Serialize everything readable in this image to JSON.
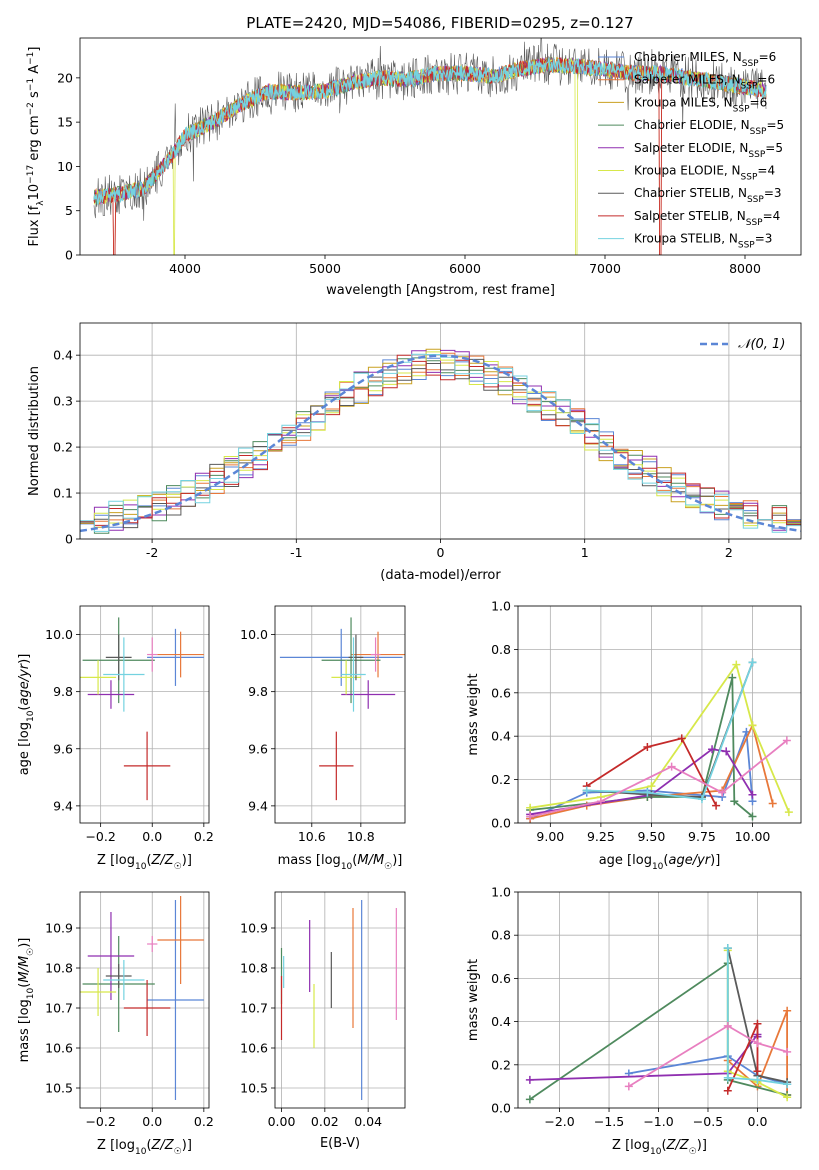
{
  "figure_title": "PLATE=2420, MJD=54086, FIBERID=0295, z=0.127",
  "colors": {
    "chab_miles": "#5b86d6",
    "salp_miles": "#e8783a",
    "krou_miles": "#c9a020",
    "chab_elodie": "#4f8a5e",
    "salp_elodie": "#8f2fb0",
    "krou_elodie": "#d7e84a",
    "chab_stelib": "#5a5a5a",
    "salp_stelib": "#c42a2a",
    "krou_stelib": "#74d2e0",
    "pink": "#e87fc0",
    "normal": "#5b86d6",
    "grid": "#b0b0b0"
  },
  "chart_data": [
    {
      "id": "spectrum",
      "type": "line",
      "xlabel": "wavelength [Angstrom, rest frame]",
      "ylabel": "Flux [f_λ10^-17 erg cm^-2 s^-1 A^-1]",
      "xlim": [
        3250,
        8400
      ],
      "ylim": [
        0,
        24.5
      ],
      "xticks": [
        4000,
        5000,
        6000,
        7000,
        8000
      ],
      "yticks": [
        0,
        5,
        10,
        15,
        20
      ],
      "grid": false,
      "legend_position": "upper-right",
      "continuum": [
        [
          3350,
          6.5
        ],
        [
          3500,
          6.8
        ],
        [
          3700,
          7.5
        ],
        [
          3900,
          11
        ],
        [
          4000,
          13.5
        ],
        [
          4200,
          15
        ],
        [
          4400,
          17
        ],
        [
          4600,
          18.5
        ],
        [
          4800,
          18.3
        ],
        [
          5000,
          18.5
        ],
        [
          5200,
          19.5
        ],
        [
          5400,
          20
        ],
        [
          5600,
          19.8
        ],
        [
          5800,
          20.5
        ],
        [
          6000,
          20.5
        ],
        [
          6200,
          20.2
        ],
        [
          6400,
          21
        ],
        [
          6600,
          21.5
        ],
        [
          6800,
          21.3
        ],
        [
          7000,
          21
        ],
        [
          7200,
          20.5
        ],
        [
          7400,
          20.5
        ],
        [
          7600,
          20
        ],
        [
          7800,
          19.5
        ],
        [
          8000,
          19
        ],
        [
          8150,
          18.5
        ]
      ],
      "series": [
        {
          "name": "Chabrier MILES",
          "nssp": "6",
          "color": "#5b86d6",
          "width": 0.8
        },
        {
          "name": "Salpeter MILES",
          "nssp": "6",
          "color": "#e8783a",
          "width": 0.8
        },
        {
          "name": "Kroupa MILES",
          "nssp": "6",
          "color": "#c9a020",
          "width": 0.8
        },
        {
          "name": "Chabrier ELODIE",
          "nssp": "5",
          "color": "#4f8a5e",
          "width": 0.8
        },
        {
          "name": "Salpeter ELODIE",
          "nssp": "5",
          "color": "#8f2fb0",
          "width": 0.8
        },
        {
          "name": "Kroupa ELODIE",
          "nssp": "4",
          "color": "#d7e84a",
          "width": 0.8
        },
        {
          "name": "Chabrier STELIB",
          "nssp": "3",
          "color": "#5a5a5a",
          "width": 0.6
        },
        {
          "name": "Salpeter STELIB",
          "nssp": "4",
          "color": "#c42a2a",
          "width": 0.8
        },
        {
          "name": "Kroupa STELIB",
          "nssp": "3",
          "color": "#74d2e0",
          "width": 1.1
        }
      ]
    },
    {
      "id": "residuals",
      "type": "histogram",
      "xlabel": "(data-model)/error",
      "ylabel": "Normed distribution",
      "xlim": [
        -2.5,
        2.5
      ],
      "ylim": [
        0,
        0.47
      ],
      "xticks": [
        -2,
        -1,
        0,
        1,
        2
      ],
      "yticks": [
        0.0,
        0.1,
        0.2,
        0.3,
        0.4
      ],
      "grid": true,
      "bins": 50,
      "legend": "𝒩(0, 1)",
      "legend_position": "upper-right"
    },
    {
      "id": "age_vs_Z",
      "type": "errorbar",
      "xlabel": "Z [log10(Z/Z☉)]",
      "ylabel": "age [log10(age/yr)]",
      "xlim": [
        -0.28,
        0.22
      ],
      "ylim": [
        9.34,
        10.1
      ],
      "xticks": [
        -0.2,
        0.0,
        0.2
      ],
      "xticklabels": [
        "−0.2",
        "0.0",
        "0.2"
      ],
      "yticks": [
        9.4,
        9.6,
        9.8,
        10.0
      ],
      "yticklabels": [
        "9.4",
        "9.6",
        "9.8",
        "10.0"
      ],
      "points": [
        {
          "color": "#5b86d6",
          "x": 0.09,
          "xerr": 0.11,
          "y": 9.92,
          "yerr": 0.1
        },
        {
          "color": "#e8783a",
          "x": 0.11,
          "xerr": 0.09,
          "y": 9.93,
          "yerr": 0.08
        },
        {
          "color": "#4f8a5e",
          "x": -0.13,
          "xerr": 0.14,
          "y": 9.91,
          "yerr": 0.15
        },
        {
          "color": "#8f2fb0",
          "x": -0.16,
          "xerr": 0.09,
          "y": 9.79,
          "yerr": 0.05
        },
        {
          "color": "#d7e84a",
          "x": -0.21,
          "xerr": 0.07,
          "y": 9.85,
          "yerr": 0.06
        },
        {
          "color": "#5a5a5a",
          "x": -0.13,
          "xerr": 0.05,
          "y": 9.92,
          "yerr": 0.08
        },
        {
          "color": "#c42a2a",
          "x": -0.02,
          "xerr": 0.09,
          "y": 9.54,
          "yerr": 0.12
        },
        {
          "color": "#74d2e0",
          "x": -0.11,
          "xerr": 0.08,
          "y": 9.86,
          "yerr": 0.13
        },
        {
          "color": "#e87fc0",
          "x": 0.0,
          "xerr": 0.02,
          "y": 9.93,
          "yerr": 0.06
        }
      ]
    },
    {
      "id": "age_vs_mass",
      "type": "errorbar",
      "xlabel": "mass [log10(M/M☉)]",
      "ylabel": "",
      "xlim": [
        10.45,
        10.98
      ],
      "ylim": [
        9.34,
        10.1
      ],
      "xticks": [
        10.6,
        10.8
      ],
      "xticklabels": [
        "10.6",
        "10.8"
      ],
      "yticks": [
        9.4,
        9.6,
        9.8,
        10.0
      ],
      "yticklabels": [
        "9.4",
        "9.6",
        "9.8",
        "10.0"
      ],
      "points": [
        {
          "color": "#5b86d6",
          "x": 10.72,
          "xerr": 0.25,
          "y": 9.92,
          "yerr": 0.1
        },
        {
          "color": "#e8783a",
          "x": 10.87,
          "xerr": 0.11,
          "y": 9.93,
          "yerr": 0.08
        },
        {
          "color": "#4f8a5e",
          "x": 10.76,
          "xerr": 0.12,
          "y": 9.91,
          "yerr": 0.15
        },
        {
          "color": "#8f2fb0",
          "x": 10.83,
          "xerr": 0.11,
          "y": 9.79,
          "yerr": 0.05
        },
        {
          "color": "#d7e84a",
          "x": 10.74,
          "xerr": 0.06,
          "y": 9.85,
          "yerr": 0.06
        },
        {
          "color": "#5a5a5a",
          "x": 10.78,
          "xerr": 0.03,
          "y": 9.92,
          "yerr": 0.08
        },
        {
          "color": "#c42a2a",
          "x": 10.7,
          "xerr": 0.07,
          "y": 9.54,
          "yerr": 0.12
        },
        {
          "color": "#74d2e0",
          "x": 10.77,
          "xerr": 0.05,
          "y": 9.86,
          "yerr": 0.13
        },
        {
          "color": "#e87fc0",
          "x": 10.86,
          "xerr": 0.02,
          "y": 9.93,
          "yerr": 0.06
        }
      ]
    },
    {
      "id": "weight_vs_age",
      "type": "line",
      "xlabel": "age [log10(age/yr)]",
      "ylabel": "mass weight",
      "xlim": [
        8.84,
        10.24
      ],
      "ylim": [
        0,
        1
      ],
      "xticks": [
        9.0,
        9.25,
        9.5,
        9.75,
        10.0
      ],
      "xticklabels": [
        "9.00",
        "9.25",
        "9.50",
        "9.75",
        "10.00"
      ],
      "yticks": [
        0,
        0.2,
        0.4,
        0.6,
        0.8,
        1.0
      ],
      "yticklabels": [
        "0.0",
        "0.2",
        "0.4",
        "0.6",
        "0.8",
        "1.0"
      ],
      "grid": true,
      "series": [
        {
          "color": "#5b86d6",
          "x": [
            8.9,
            9.18,
            9.48,
            9.85,
            9.97,
            10.0
          ],
          "y": [
            0.02,
            0.14,
            0.15,
            0.12,
            0.42,
            0.1
          ]
        },
        {
          "color": "#e8783a",
          "x": [
            8.9,
            9.18,
            9.48,
            9.85,
            10.0,
            10.1
          ],
          "y": [
            0.02,
            0.08,
            0.12,
            0.15,
            0.45,
            0.09
          ]
        },
        {
          "color": "#4f8a5e",
          "x": [
            8.9,
            9.48,
            9.75,
            9.9,
            9.91,
            10.0
          ],
          "y": [
            0.06,
            0.12,
            0.12,
            0.67,
            0.1,
            0.03
          ]
        },
        {
          "color": "#8f2fb0",
          "x": [
            8.9,
            9.5,
            9.8,
            9.87,
            10.0
          ],
          "y": [
            0.04,
            0.13,
            0.34,
            0.33,
            0.13
          ]
        },
        {
          "color": "#d7e84a",
          "x": [
            8.9,
            9.25,
            9.5,
            9.92,
            10.0,
            10.18
          ],
          "y": [
            0.07,
            0.12,
            0.17,
            0.73,
            0.45,
            0.05
          ]
        },
        {
          "color": "#5a5a5a",
          "x": [
            9.18,
            9.5,
            9.75,
            10.0
          ],
          "y": [
            0.15,
            0.13,
            0.12,
            0.74
          ]
        },
        {
          "color": "#c42a2a",
          "x": [
            9.18,
            9.48,
            9.65,
            9.82
          ],
          "y": [
            0.17,
            0.35,
            0.39,
            0.08
          ]
        },
        {
          "color": "#74d2e0",
          "x": [
            9.18,
            9.48,
            9.75,
            10.0
          ],
          "y": [
            0.15,
            0.14,
            0.11,
            0.74
          ]
        },
        {
          "color": "#e87fc0",
          "x": [
            8.9,
            9.25,
            9.6,
            9.85,
            10.17
          ],
          "y": [
            0.03,
            0.1,
            0.26,
            0.14,
            0.38
          ]
        }
      ]
    },
    {
      "id": "mass_vs_Z",
      "type": "errorbar",
      "xlabel": "Z [log10(Z/Z☉)]",
      "ylabel": "mass [log10(M/M☉)]",
      "xlim": [
        -0.28,
        0.22
      ],
      "ylim": [
        10.45,
        10.99
      ],
      "xticks": [
        -0.2,
        0.0,
        0.2
      ],
      "xticklabels": [
        "−0.2",
        "0.0",
        "0.2"
      ],
      "yticks": [
        10.5,
        10.6,
        10.7,
        10.8,
        10.9
      ],
      "yticklabels": [
        "10.5",
        "10.6",
        "10.7",
        "10.8",
        "10.9"
      ],
      "points": [
        {
          "color": "#5b86d6",
          "x": 0.09,
          "xerr": 0.11,
          "y": 10.72,
          "yerr": 0.25
        },
        {
          "color": "#e8783a",
          "x": 0.11,
          "xerr": 0.09,
          "y": 10.87,
          "yerr": 0.11
        },
        {
          "color": "#4f8a5e",
          "x": -0.13,
          "xerr": 0.14,
          "y": 10.76,
          "yerr": 0.12
        },
        {
          "color": "#8f2fb0",
          "x": -0.16,
          "xerr": 0.09,
          "y": 10.83,
          "yerr": 0.11
        },
        {
          "color": "#d7e84a",
          "x": -0.21,
          "xerr": 0.07,
          "y": 10.74,
          "yerr": 0.06
        },
        {
          "color": "#5a5a5a",
          "x": -0.13,
          "xerr": 0.05,
          "y": 10.78,
          "yerr": 0.03
        },
        {
          "color": "#c42a2a",
          "x": -0.02,
          "xerr": 0.09,
          "y": 10.7,
          "yerr": 0.07
        },
        {
          "color": "#74d2e0",
          "x": -0.11,
          "xerr": 0.08,
          "y": 10.77,
          "yerr": 0.05
        },
        {
          "color": "#e87fc0",
          "x": 0.0,
          "xerr": 0.02,
          "y": 10.86,
          "yerr": 0.02
        }
      ]
    },
    {
      "id": "mass_vs_EBV",
      "type": "errorbar",
      "xlabel": "E(B-V)",
      "ylabel": "",
      "xlim": [
        -0.003,
        0.057
      ],
      "ylim": [
        10.45,
        10.99
      ],
      "xticks": [
        0.0,
        0.02,
        0.04
      ],
      "xticklabels": [
        "0.00",
        "0.02",
        "0.04"
      ],
      "yticks": [
        10.5,
        10.6,
        10.7,
        10.8,
        10.9
      ],
      "yticklabels": [
        "10.5",
        "10.6",
        "10.7",
        "10.8",
        "10.9"
      ],
      "points": [
        {
          "color": "#5b86d6",
          "x": 0.037,
          "xerr": 0,
          "y": 10.72,
          "yerr": 0.25
        },
        {
          "color": "#e8783a",
          "x": 0.033,
          "xerr": 0,
          "y": 10.8,
          "yerr": 0.15
        },
        {
          "color": "#4f8a5e",
          "x": 0.0,
          "xerr": 0,
          "y": 10.78,
          "yerr": 0.07
        },
        {
          "color": "#8f2fb0",
          "x": 0.013,
          "xerr": 0,
          "y": 10.83,
          "yerr": 0.09
        },
        {
          "color": "#d7e84a",
          "x": 0.015,
          "xerr": 0,
          "y": 10.68,
          "yerr": 0.08
        },
        {
          "color": "#5a5a5a",
          "x": 0.023,
          "xerr": 0,
          "y": 10.77,
          "yerr": 0.07
        },
        {
          "color": "#c42a2a",
          "x": 0.0,
          "xerr": 0,
          "y": 10.7,
          "yerr": 0.08
        },
        {
          "color": "#74d2e0",
          "x": 0.001,
          "xerr": 0,
          "y": 10.79,
          "yerr": 0.04
        },
        {
          "color": "#e87fc0",
          "x": 0.053,
          "xerr": 0,
          "y": 10.81,
          "yerr": 0.14
        }
      ]
    },
    {
      "id": "weight_vs_Z",
      "type": "line",
      "xlabel": "Z [log10(Z/Z☉)]",
      "ylabel": "mass weight",
      "xlim": [
        -2.42,
        0.44
      ],
      "ylim": [
        0,
        1
      ],
      "xticks": [
        -2.0,
        -1.5,
        -1.0,
        -0.5,
        0.0
      ],
      "xticklabels": [
        "−2.0",
        "−1.5",
        "−1.0",
        "−0.5",
        "0.0"
      ],
      "yticks": [
        0,
        0.2,
        0.4,
        0.6,
        0.8,
        1.0
      ],
      "yticklabels": [
        "0.0",
        "0.2",
        "0.4",
        "0.6",
        "0.8",
        "1.0"
      ],
      "grid": true,
      "series": [
        {
          "color": "#5b86d6",
          "x": [
            -1.3,
            -0.3,
            0.0,
            0.3
          ],
          "y": [
            0.16,
            0.24,
            0.15,
            0.11
          ]
        },
        {
          "color": "#e8783a",
          "x": [
            -0.3,
            0.0,
            0.3,
            0.3
          ],
          "y": [
            0.22,
            0.1,
            0.45,
            0.06
          ]
        },
        {
          "color": "#4f8a5e",
          "x": [
            -2.3,
            -0.3,
            -0.3,
            0.3
          ],
          "y": [
            0.04,
            0.67,
            0.13,
            0.06
          ]
        },
        {
          "color": "#8f2fb0",
          "x": [
            -2.3,
            -0.3,
            0.0,
            0.0
          ],
          "y": [
            0.13,
            0.16,
            0.34,
            0.33
          ]
        },
        {
          "color": "#d7e84a",
          "x": [
            -0.3,
            -0.3,
            0.0,
            0.3
          ],
          "y": [
            0.73,
            0.17,
            0.12,
            0.05
          ]
        },
        {
          "color": "#5a5a5a",
          "x": [
            -0.3,
            0.0,
            0.3
          ],
          "y": [
            0.74,
            0.15,
            0.12
          ]
        },
        {
          "color": "#c42a2a",
          "x": [
            -0.3,
            0.0,
            0.0
          ],
          "y": [
            0.08,
            0.39,
            0.17
          ]
        },
        {
          "color": "#74d2e0",
          "x": [
            -0.3,
            -0.3,
            0.0,
            0.3
          ],
          "y": [
            0.74,
            0.14,
            0.13,
            0.11
          ]
        },
        {
          "color": "#e87fc0",
          "x": [
            -1.3,
            -0.3,
            0.0,
            0.3
          ],
          "y": [
            0.1,
            0.38,
            0.3,
            0.26
          ]
        }
      ]
    }
  ]
}
